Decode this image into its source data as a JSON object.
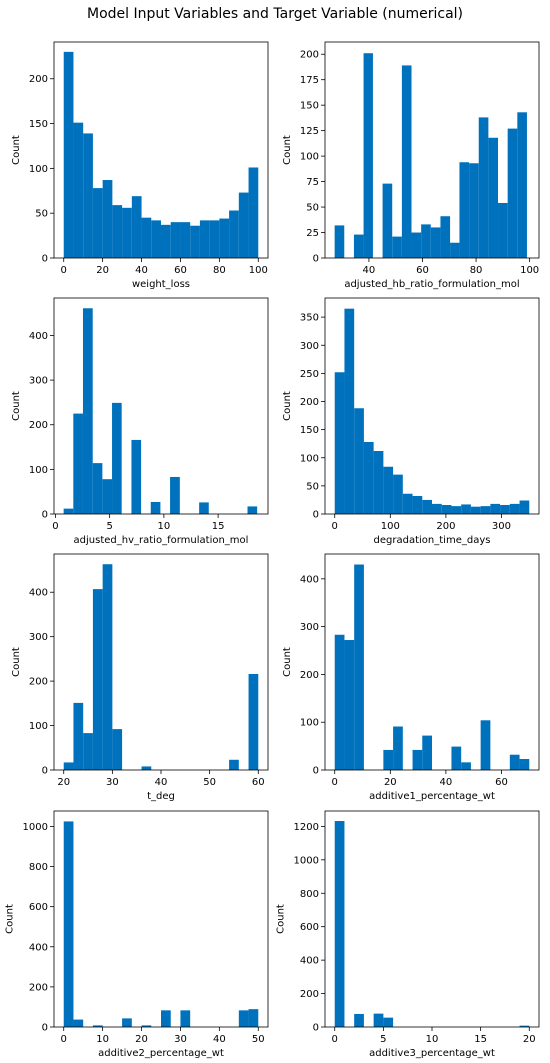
{
  "figure": {
    "title": "Model Input Variables and Target Variable (numerical)",
    "bar_color": "#0072bd"
  },
  "chart_data": [
    {
      "type": "bar",
      "xlabel": "weight_loss",
      "ylabel": "Count",
      "xlim": [
        -5,
        105
      ],
      "ylim": [
        0,
        241
      ],
      "xticks": [
        0,
        20,
        40,
        60,
        80,
        100
      ],
      "yticks": [
        0,
        50,
        100,
        150,
        200
      ],
      "bin_edges": [
        0,
        5,
        10,
        15,
        20,
        25,
        30,
        35,
        40,
        45,
        50,
        55,
        60,
        65,
        70,
        75,
        80,
        85,
        90,
        95,
        100
      ],
      "values": [
        230,
        151,
        139,
        78,
        87,
        59,
        56,
        69,
        45,
        42,
        37,
        40,
        40,
        36,
        42,
        42,
        44,
        53,
        73,
        101
      ]
    },
    {
      "type": "bar",
      "xlabel": "adjusted_hb_ratio_formulation_mol",
      "ylabel": "Count",
      "xlim": [
        23.6,
        103.5
      ],
      "ylim": [
        0,
        212
      ],
      "xticks": [
        40,
        60,
        80,
        100
      ],
      "yticks": [
        0,
        25,
        50,
        75,
        100,
        125,
        150,
        175,
        200
      ],
      "bin_edges": [
        27.2,
        30.8,
        34.4,
        38.0,
        41.5,
        45.1,
        48.7,
        52.3,
        55.9,
        59.5,
        63.1,
        66.7,
        70.3,
        73.8,
        77.4,
        81.0,
        84.6,
        88.2,
        91.8,
        95.4,
        99.0
      ],
      "values": [
        32,
        0,
        23,
        201,
        0,
        73,
        21,
        189,
        25,
        33,
        30,
        41,
        15,
        94,
        93,
        138,
        118,
        54,
        127,
        143
      ]
    },
    {
      "type": "bar",
      "xlabel": "adjusted_hv_ratio_formulation_mol",
      "ylabel": "Count",
      "xlim": [
        -0.13,
        19.6
      ],
      "ylim": [
        0,
        484
      ],
      "xticks": [
        0,
        5,
        10,
        15
      ],
      "yticks": [
        0,
        100,
        200,
        300,
        400
      ],
      "bin_edges": [
        0.76,
        1.65,
        2.54,
        3.44,
        4.33,
        5.22,
        6.11,
        7.01,
        7.9,
        8.79,
        9.68,
        10.57,
        11.47,
        12.36,
        13.25,
        14.14,
        15.04,
        15.93,
        16.82,
        17.71,
        18.6
      ],
      "values": [
        12,
        225,
        461,
        114,
        78,
        249,
        0,
        166,
        0,
        27,
        0,
        83,
        0,
        0,
        26,
        0,
        0,
        0,
        0,
        17
      ]
    },
    {
      "type": "bar",
      "xlabel": "degradation_time_days",
      "ylabel": "Count",
      "xlim": [
        -17.5,
        367.5
      ],
      "ylim": [
        0,
        384
      ],
      "xticks": [
        0,
        100,
        200,
        300
      ],
      "yticks": [
        0,
        50,
        100,
        150,
        200,
        250,
        300,
        350
      ],
      "bin_edges": [
        0,
        17.5,
        35,
        52.5,
        70,
        87.5,
        105,
        122.5,
        140,
        157.5,
        175,
        192.5,
        210,
        227.5,
        245,
        262.5,
        280,
        297.5,
        315,
        332.5,
        350
      ],
      "values": [
        252,
        365,
        188,
        128,
        112,
        84,
        70,
        36,
        32,
        25,
        18,
        16,
        14,
        17,
        13,
        14,
        18,
        16,
        18,
        24
      ]
    },
    {
      "type": "bar",
      "xlabel": "t_deg",
      "ylabel": "Count",
      "xlim": [
        18,
        62
      ],
      "ylim": [
        0,
        486
      ],
      "xticks": [
        20,
        30,
        40,
        50,
        60
      ],
      "yticks": [
        0,
        100,
        200,
        300,
        400
      ],
      "bin_edges": [
        20,
        22,
        24,
        26,
        28,
        30,
        32,
        34,
        36,
        38,
        40,
        42,
        44,
        46,
        48,
        50,
        52,
        54,
        56,
        58,
        60
      ],
      "values": [
        17,
        151,
        83,
        407,
        463,
        92,
        0,
        0,
        8,
        0,
        0,
        0,
        0,
        0,
        0,
        0,
        0,
        23,
        0,
        216
      ]
    },
    {
      "type": "bar",
      "xlabel": "additive1_percentage_wt",
      "ylabel": "Count",
      "xlim": [
        -3.5,
        73.5
      ],
      "ylim": [
        0,
        452
      ],
      "xticks": [
        0,
        20,
        40,
        60
      ],
      "yticks": [
        0,
        100,
        200,
        300,
        400
      ],
      "bin_edges": [
        0,
        3.5,
        7,
        10.5,
        14,
        17.5,
        21,
        24.5,
        28,
        31.5,
        35,
        38.5,
        42,
        45.5,
        49,
        52.5,
        56,
        59.5,
        63,
        66.5,
        70
      ],
      "values": [
        283,
        272,
        430,
        0,
        0,
        42,
        91,
        0,
        42,
        72,
        0,
        0,
        49,
        16,
        0,
        104,
        0,
        0,
        32,
        23
      ]
    },
    {
      "type": "bar",
      "xlabel": "additive2_percentage_wt",
      "ylabel": "Count",
      "xlim": [
        -2.5,
        52.5
      ],
      "ylim": [
        0,
        1077
      ],
      "xticks": [
        0,
        10,
        20,
        30,
        40,
        50
      ],
      "yticks": [
        0,
        200,
        400,
        600,
        800,
        1000
      ],
      "bin_edges": [
        0,
        2.5,
        5,
        7.5,
        10,
        12.5,
        15,
        17.5,
        20,
        22.5,
        25,
        27.5,
        30,
        32.5,
        35,
        37.5,
        40,
        42.5,
        45,
        47.5,
        50
      ],
      "values": [
        1025,
        37,
        0,
        8,
        0,
        0,
        43,
        0,
        8,
        0,
        83,
        0,
        83,
        0,
        0,
        0,
        0,
        0,
        83,
        89
      ]
    },
    {
      "type": "bar",
      "xlabel": "additive3_percentage_wt",
      "ylabel": "Count",
      "xlim": [
        -1,
        21
      ],
      "ylim": [
        0,
        1292
      ],
      "xticks": [
        0,
        5,
        10,
        15,
        20
      ],
      "yticks": [
        0,
        200,
        400,
        600,
        800,
        1000,
        1200
      ],
      "bin_edges": [
        0,
        1,
        2,
        3,
        4,
        5,
        6,
        7,
        8,
        9,
        10,
        11,
        12,
        13,
        14,
        15,
        16,
        17,
        18,
        19,
        20
      ],
      "values": [
        1232,
        0,
        78,
        0,
        80,
        56,
        0,
        0,
        0,
        0,
        0,
        0,
        0,
        0,
        0,
        0,
        0,
        0,
        0,
        8
      ]
    }
  ]
}
